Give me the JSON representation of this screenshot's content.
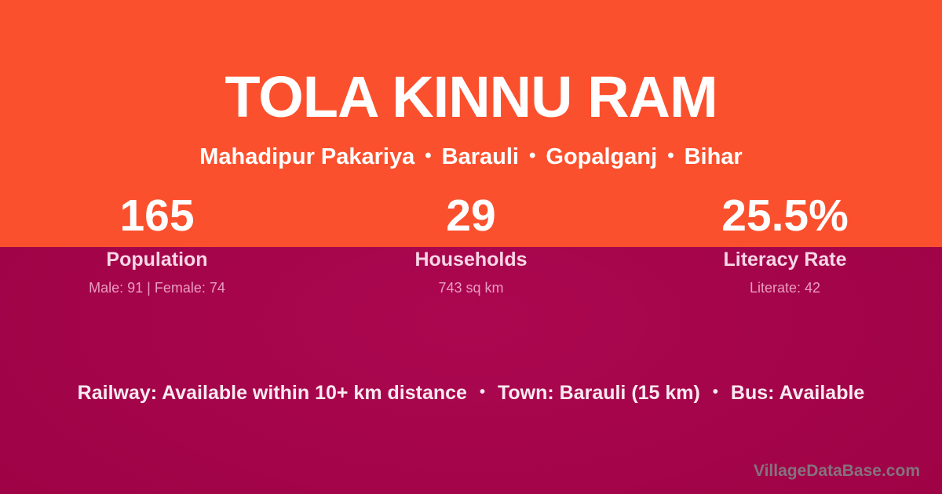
{
  "header": {
    "title": "TOLA KINNU RAM",
    "location": {
      "parts": [
        "Mahadipur Pakariya",
        "Barauli",
        "Gopalganj",
        "Bihar"
      ],
      "separator": "•"
    }
  },
  "stats": [
    {
      "value": "165",
      "label": "Population",
      "sub": "Male: 91 | Female: 74"
    },
    {
      "value": "29",
      "label": "Households",
      "sub": "743 sq km"
    },
    {
      "value": "25.5%",
      "label": "Literacy Rate",
      "sub": "Literate: 42"
    }
  ],
  "transport": {
    "separator": "•",
    "items": [
      "Railway: Available within 10+ km distance",
      "Town: Barauli (15 km)",
      "Bus: Available"
    ]
  },
  "watermark": "VillageDataBase.com",
  "colors": {
    "top_background": "#fb502d",
    "bottom_background": "#a00347",
    "title_text": "#ffffff",
    "stat_value_text": "#ffffff",
    "stat_label_text": "#f7d6e5",
    "stat_sub_text": "#eb9cc1",
    "transport_text": "#f9e9f0",
    "watermark_text": "#84737e"
  }
}
